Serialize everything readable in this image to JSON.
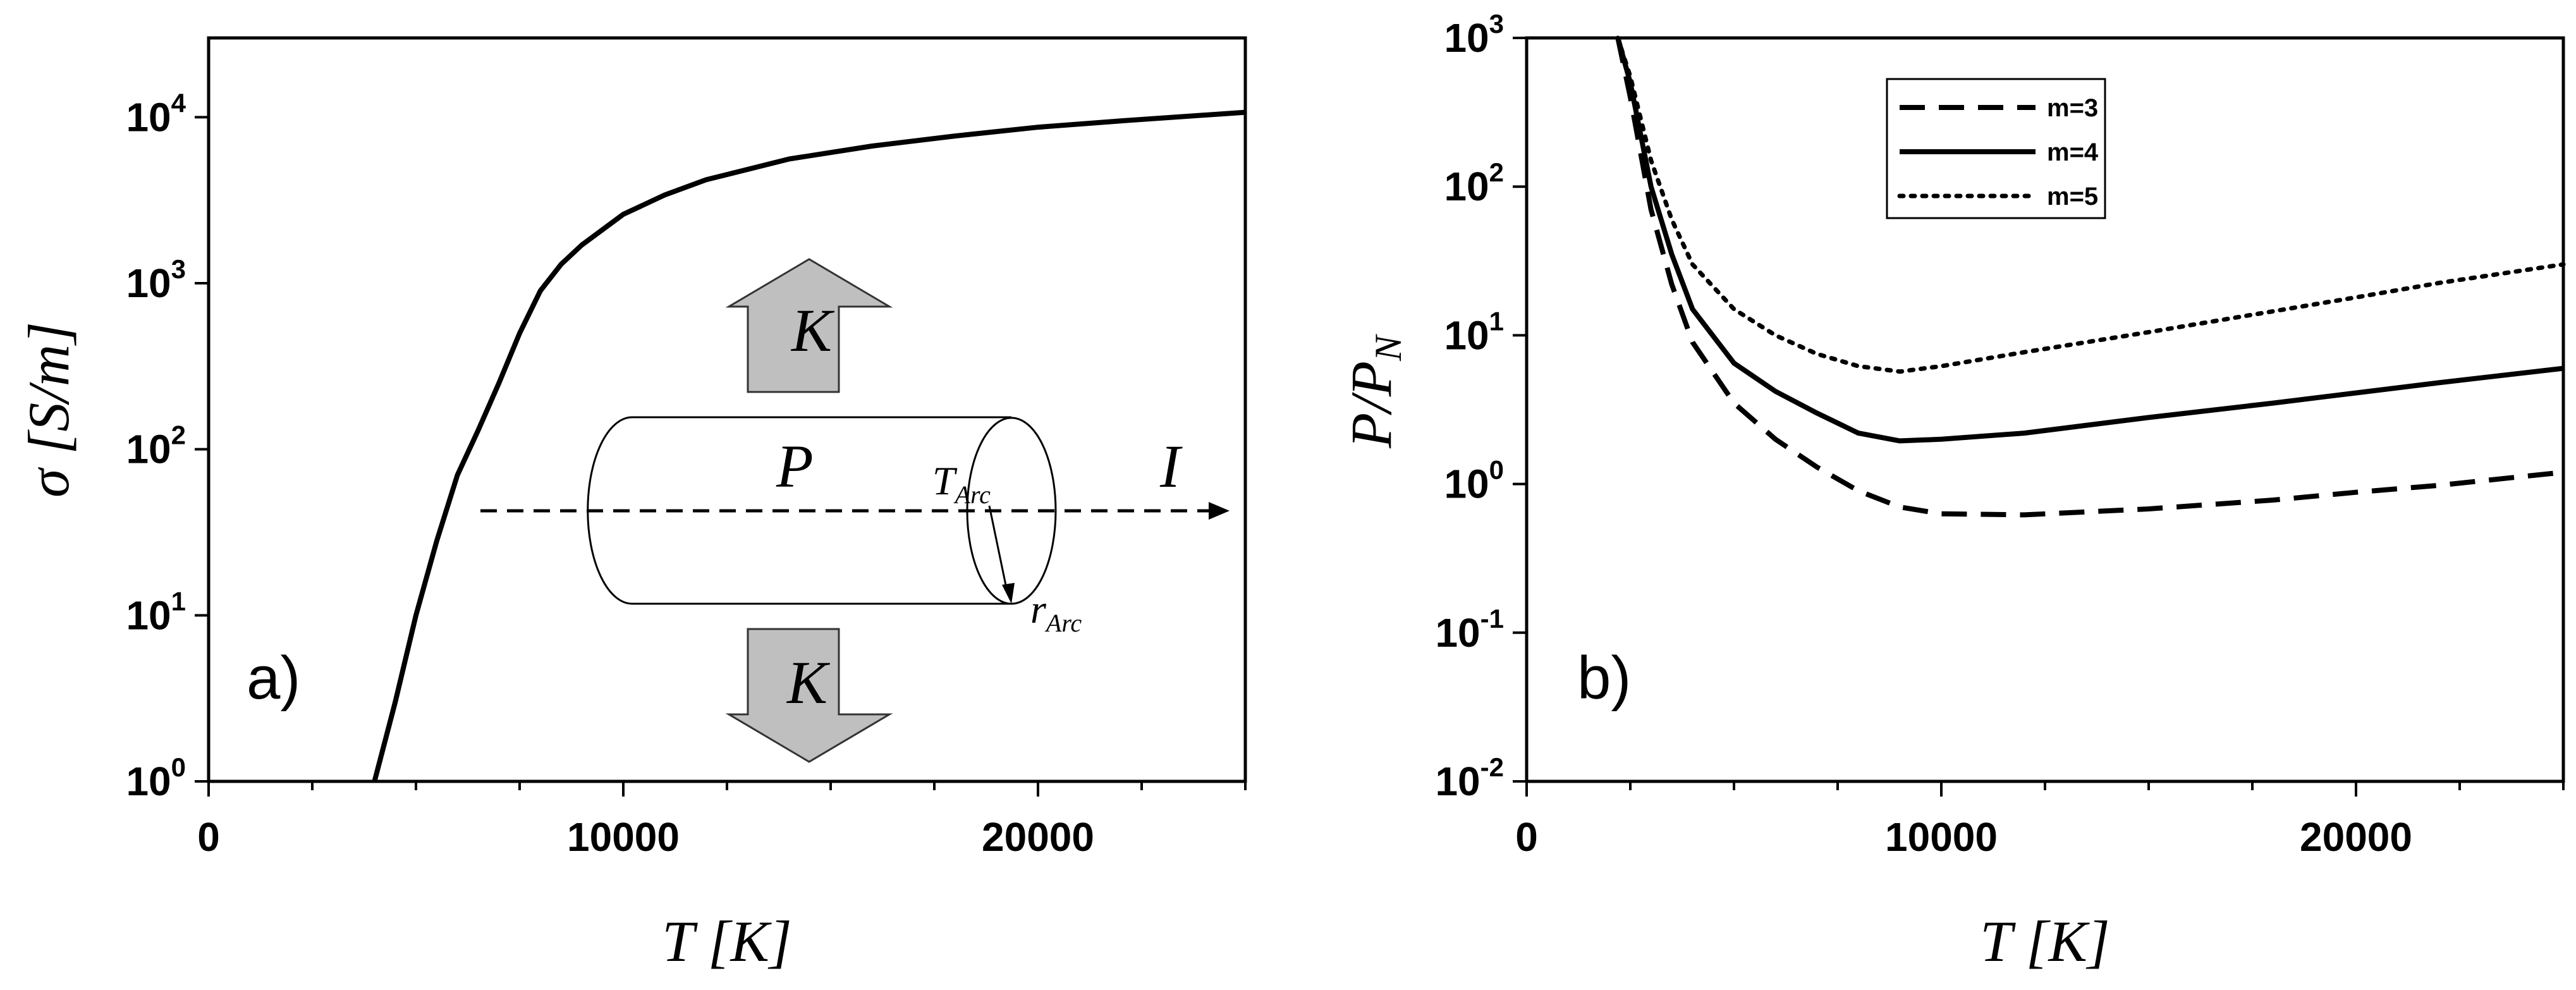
{
  "chart_data": [
    {
      "type": "line",
      "panel_label": "a)",
      "title": "",
      "xlabel": "T [K]",
      "ylabel": "σ [S/m]",
      "xlim": [
        0,
        25000
      ],
      "ylim": [
        1,
        30000
      ],
      "yscale": "log",
      "grid": false,
      "x_ticks": [
        0,
        10000,
        20000
      ],
      "x_tick_labels": [
        "0",
        "10000",
        "20000"
      ],
      "y_tick_labels": [
        {
          "base": "10",
          "exp": "0",
          "value": 1
        },
        {
          "base": "10",
          "exp": "1",
          "value": 10
        },
        {
          "base": "10",
          "exp": "2",
          "value": 100
        },
        {
          "base": "10",
          "exp": "3",
          "value": 1000
        },
        {
          "base": "10",
          "exp": "4",
          "value": 10000
        }
      ],
      "series": [
        {
          "style": "solid",
          "x": [
            4000,
            4500,
            5000,
            5500,
            6000,
            6500,
            7000,
            7500,
            8000,
            8500,
            9000,
            10000,
            11000,
            12000,
            14000,
            16000,
            18000,
            20000,
            22000,
            25000
          ],
          "y": [
            1,
            3,
            10,
            28,
            70,
            130,
            250,
            500,
            900,
            1300,
            1700,
            2600,
            3400,
            4200,
            5600,
            6700,
            7700,
            8700,
            9500,
            10700
          ]
        }
      ],
      "inset_diagram": {
        "arrow_label_top": "K",
        "arrow_label_bottom": "K",
        "cylinder_label": "P",
        "current_label": "I",
        "temperature_label": "T",
        "temperature_sub": "Arc",
        "radius_label": "r",
        "radius_sub": "Arc",
        "arrow_fill": "#bfbfbf"
      }
    },
    {
      "type": "line",
      "panel_label": "b)",
      "title": "",
      "xlabel": "T [K]",
      "ylabel": "P/P",
      "ylabel_sub": "N",
      "xlim": [
        0,
        25000
      ],
      "ylim": [
        0.01,
        1000
      ],
      "yscale": "log",
      "grid": false,
      "legend_position": "top-center",
      "x_ticks": [
        0,
        10000,
        20000
      ],
      "x_tick_labels": [
        "0",
        "10000",
        "20000"
      ],
      "y_tick_labels": [
        {
          "base": "10",
          "exp": "-2",
          "value": 0.01
        },
        {
          "base": "10",
          "exp": "-1",
          "value": 0.1
        },
        {
          "base": "10",
          "exp": "0",
          "value": 1
        },
        {
          "base": "10",
          "exp": "1",
          "value": 10
        },
        {
          "base": "10",
          "exp": "2",
          "value": 100
        },
        {
          "base": "10",
          "exp": "3",
          "value": 1000
        }
      ],
      "series": [
        {
          "name": "m=3",
          "style": "dashed",
          "x": [
            2200,
            2500,
            3000,
            3500,
            4000,
            5000,
            6000,
            7000,
            8000,
            9000,
            10000,
            12000,
            15000,
            18000,
            20000,
            22000,
            25000
          ],
          "y": [
            1000,
            400,
            70,
            22,
            9,
            3.5,
            2.0,
            1.3,
            0.9,
            0.7,
            0.63,
            0.62,
            0.68,
            0.78,
            0.88,
            0.98,
            1.2
          ]
        },
        {
          "name": "m=4",
          "style": "solid",
          "x": [
            2200,
            2500,
            3000,
            3500,
            4000,
            5000,
            6000,
            7000,
            8000,
            9000,
            10000,
            12000,
            15000,
            18000,
            20000,
            22000,
            25000
          ],
          "y": [
            1000,
            500,
            100,
            35,
            15,
            6.5,
            4.2,
            3.0,
            2.2,
            1.95,
            2.0,
            2.2,
            2.8,
            3.5,
            4.1,
            4.8,
            6.0
          ]
        },
        {
          "name": "m=5",
          "style": "dotted",
          "x": [
            2200,
            2500,
            3000,
            3500,
            4000,
            5000,
            6000,
            7000,
            8000,
            9000,
            10000,
            12000,
            15000,
            18000,
            20000,
            22000,
            25000
          ],
          "y": [
            1000,
            550,
            150,
            60,
            30,
            15,
            10,
            7.5,
            6.2,
            5.7,
            6.2,
            7.7,
            10.5,
            14.5,
            18,
            22.5,
            30
          ]
        }
      ]
    }
  ]
}
